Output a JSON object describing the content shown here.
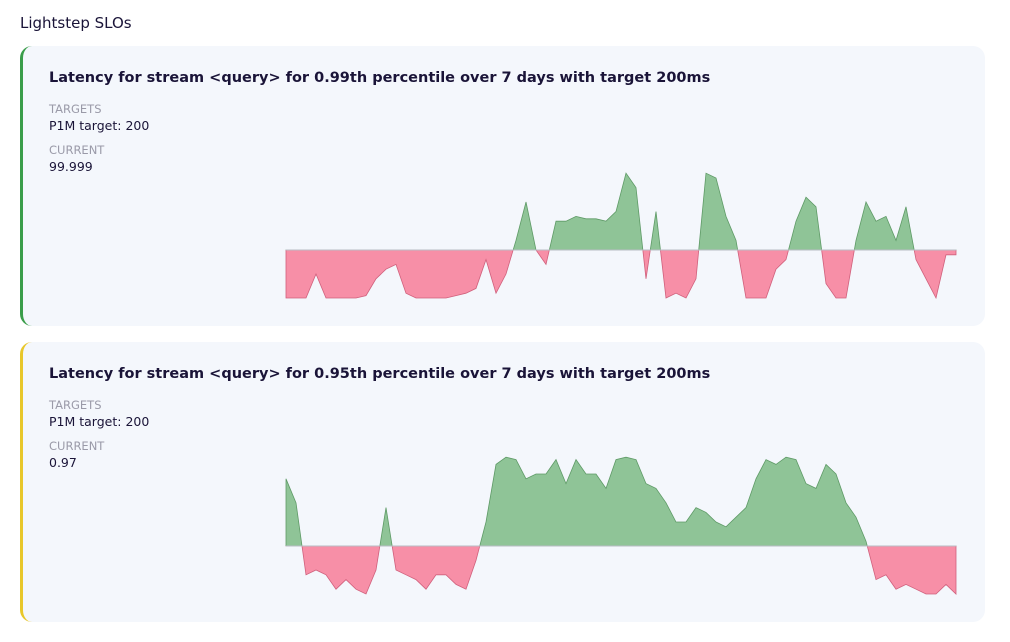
{
  "header": {
    "title": "Lightstep SLOs"
  },
  "cards": [
    {
      "title": "Latency for stream <query> for 0.99th percentile over 7 days with target 200ms",
      "targets_label": "TARGETS",
      "target": "P1M target: 200",
      "current_label": "CURRENT",
      "current": "99.999",
      "border_color": "#3a9d4a",
      "chart": {
        "type": "area",
        "ylim": [
          -1,
          2
        ],
        "positive_color": "#8fc497",
        "negative_color": "#f78fa7",
        "values": [
          -1,
          -1,
          -1,
          -0.5,
          -1,
          -1,
          -1,
          -1,
          -0.95,
          -0.6,
          -0.4,
          -0.3,
          -0.9,
          -1,
          -1,
          -1,
          -1,
          -0.95,
          -0.9,
          -0.8,
          -0.2,
          -0.9,
          -0.5,
          0.2,
          1.0,
          0,
          -0.3,
          0.6,
          0.6,
          0.7,
          0.65,
          0.65,
          0.6,
          0.8,
          1.6,
          1.3,
          -0.6,
          0.8,
          -1,
          -0.9,
          -1,
          -0.6,
          1.6,
          1.5,
          0.7,
          0.2,
          -1,
          -1,
          -1,
          -0.4,
          -0.2,
          0.6,
          1.1,
          0.9,
          -0.7,
          -1,
          -1,
          0.2,
          1.0,
          0.6,
          0.7,
          0.2,
          0.9,
          -0.2,
          -0.6,
          -1,
          -0.1,
          -0.1
        ]
      }
    },
    {
      "title": "Latency for stream <query> for 0.95th percentile over 7 days with target 200ms",
      "targets_label": "TARGETS",
      "target": "P1M target: 200",
      "current_label": "CURRENT",
      "current": "0.97",
      "border_color": "#e8c72a",
      "chart": {
        "type": "area",
        "ylim": [
          -1,
          2
        ],
        "positive_color": "#8fc497",
        "negative_color": "#f78fa7",
        "values": [
          1.4,
          0.9,
          -0.6,
          -0.5,
          -0.6,
          -0.9,
          -0.7,
          -0.9,
          -1,
          -0.5,
          0.8,
          -0.5,
          -0.6,
          -0.7,
          -0.9,
          -0.6,
          -0.6,
          -0.8,
          -0.9,
          -0.3,
          0.5,
          1.7,
          1.85,
          1.8,
          1.4,
          1.5,
          1.5,
          1.8,
          1.3,
          1.8,
          1.5,
          1.5,
          1.2,
          1.8,
          1.85,
          1.8,
          1.3,
          1.2,
          0.9,
          0.5,
          0.5,
          0.8,
          0.7,
          0.5,
          0.4,
          0.6,
          0.8,
          1.4,
          1.8,
          1.7,
          1.85,
          1.8,
          1.3,
          1.2,
          1.7,
          1.5,
          0.9,
          0.6,
          0.1,
          -0.7,
          -0.6,
          -0.9,
          -0.8,
          -0.9,
          -1,
          -1,
          -0.8,
          -1
        ]
      }
    }
  ]
}
